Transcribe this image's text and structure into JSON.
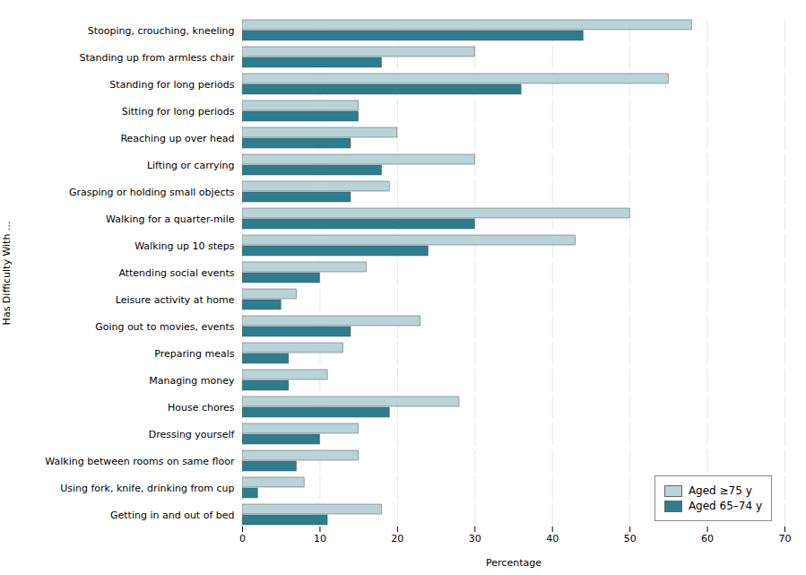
{
  "chart_data": {
    "type": "bar",
    "orientation": "horizontal",
    "categories": [
      "Stooping, crouching, kneeling",
      "Standing up from armless chair",
      "Standing for long periods",
      "Sitting for long periods",
      "Reaching up over head",
      "Lifting or carrying",
      "Grasping or holding small objects",
      "Walking for a quarter-mile",
      "Walking up 10 steps",
      "Attending social events",
      "Leisure activity at home",
      "Going out to movies, events",
      "Preparing meals",
      "Managing money",
      "House chores",
      "Dressing yourself",
      "Walking between rooms on same floor",
      "Using fork, knife, drinking from cup",
      "Getting in and out of bed"
    ],
    "series": [
      {
        "name": "Aged ≥75 y",
        "color": "#b8d4d8",
        "values": [
          58,
          30,
          55,
          15,
          20,
          30,
          19,
          50,
          43,
          16,
          7,
          23,
          13,
          11,
          28,
          15,
          15,
          8,
          18
        ]
      },
      {
        "name": "Aged 65–74 y",
        "color": "#2d7d8e",
        "values": [
          44,
          18,
          36,
          15,
          14,
          18,
          14,
          30,
          24,
          10,
          5,
          14,
          6,
          6,
          19,
          10,
          7,
          2,
          11
        ]
      }
    ],
    "xlabel": "Percentage",
    "ylabel": "Has Difficulty With ...",
    "xlim": [
      0,
      70
    ],
    "xticks": [
      0,
      10,
      20,
      30,
      40,
      50,
      60,
      70
    ],
    "grid": true,
    "legend": "lower right"
  }
}
